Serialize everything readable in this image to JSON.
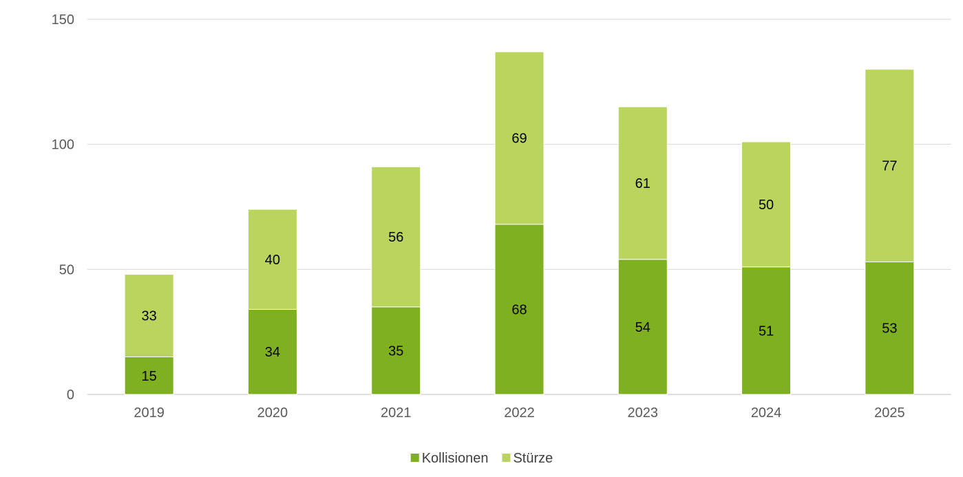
{
  "chart_data": {
    "type": "bar",
    "stacked": true,
    "categories": [
      "2019",
      "2020",
      "2021",
      "2022",
      "2023",
      "2024",
      "2025"
    ],
    "series": [
      {
        "name": "Kollisionen",
        "values": [
          15,
          34,
          35,
          68,
          54,
          51,
          53
        ],
        "color": "#7fb020"
      },
      {
        "name": "Stürze",
        "values": [
          33,
          40,
          56,
          69,
          61,
          50,
          77
        ],
        "color": "#bad55e"
      }
    ],
    "ylim": [
      0,
      150
    ],
    "yticks": [
      0,
      50,
      100,
      150
    ],
    "grid": true,
    "legend": "bottom-center",
    "title": "",
    "xlabel": "",
    "ylabel": ""
  }
}
